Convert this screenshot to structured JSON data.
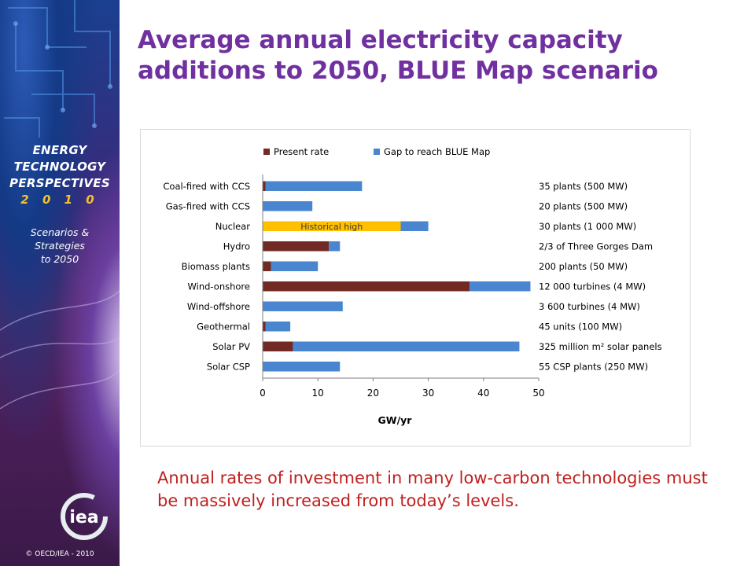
{
  "sidebar": {
    "brand_lines": [
      "ENERGY",
      "TECHNOLOGY",
      "PERSPECTIVES"
    ],
    "brand_year": "2 0 1 0",
    "sub_lines": [
      "Scenarios &",
      "Strategies",
      "to 2050"
    ],
    "logo_text": "iea",
    "copyright": "© OECD/IEA - 2010"
  },
  "title": "Average annual electricity capacity additions to 2050, BLUE Map scenario",
  "caption": "Annual rates of investment in many low-carbon technologies must be massively increased from today’s levels.",
  "colors": {
    "present": "#722a24",
    "gap": "#4a86d0",
    "historical": "#ffc000",
    "title": "#7030a0",
    "caption": "#c0201e"
  },
  "chart_data": {
    "type": "bar",
    "orientation": "horizontal",
    "stacked": true,
    "categories": [
      "Coal-fired with CCS",
      "Gas-fired with CCS",
      "Nuclear",
      "Hydro",
      "Biomass plants",
      "Wind-onshore",
      "Wind-offshore",
      "Geothermal",
      "Solar PV",
      "Solar CSP"
    ],
    "series": [
      {
        "name": "Present rate",
        "values": [
          0.5,
          0,
          0,
          12,
          1.5,
          37.5,
          0,
          0.5,
          5.5,
          0
        ]
      },
      {
        "name": "Historical high",
        "values": [
          0,
          0,
          25,
          0,
          0,
          0,
          0,
          0,
          0,
          0
        ]
      },
      {
        "name": "Gap to reach BLUE Map",
        "values": [
          17.5,
          9,
          5,
          2,
          8.5,
          11,
          14.5,
          4.5,
          41,
          14
        ]
      }
    ],
    "legend": [
      "Present rate",
      "Gap to reach BLUE Map"
    ],
    "legend_position": "top",
    "annotations": [
      "35 plants (500 MW)",
      "20 plants (500 MW)",
      "30 plants (1 000 MW)",
      "2/3 of Three Gorges Dam",
      "200 plants  (50 MW)",
      "12 000 turbines  (4 MW)",
      "3 600 turbines  (4 MW)",
      "45 units (100 MW)",
      "325 million m² solar panels",
      "55 CSP plants (250 MW)"
    ],
    "inner_label": "Historical high",
    "xlabel": "GW/yr",
    "xlim": [
      0,
      50
    ],
    "xticks": [
      "0",
      "10",
      "20",
      "30",
      "40",
      "50"
    ],
    "grid": false
  }
}
